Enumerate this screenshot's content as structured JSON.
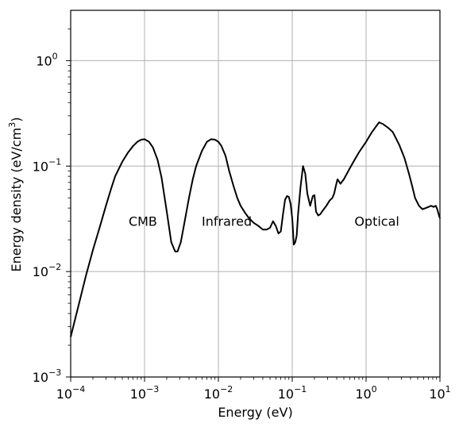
{
  "chart_data": {
    "type": "line",
    "xlabel": "Energy (eV)",
    "ylabel": "Energy density (eV/cm",
    "ylabel_sup": "3",
    "ylabel_end": ")",
    "x_scale": "log",
    "y_scale": "log",
    "xlim": [
      0.0001,
      10
    ],
    "ylim": [
      0.001,
      3
    ],
    "grid": true,
    "x_ticks": [
      {
        "base": "10",
        "exp": "−4",
        "value": 0.0001
      },
      {
        "base": "10",
        "exp": "−3",
        "value": 0.001
      },
      {
        "base": "10",
        "exp": "−2",
        "value": 0.01
      },
      {
        "base": "10",
        "exp": "−1",
        "value": 0.1
      },
      {
        "base": "10",
        "exp": "0",
        "value": 1
      },
      {
        "base": "10",
        "exp": "1",
        "value": 10
      }
    ],
    "y_ticks": [
      {
        "base": "10",
        "exp": "−3",
        "value": 0.001
      },
      {
        "base": "10",
        "exp": "−2",
        "value": 0.01
      },
      {
        "base": "10",
        "exp": "−1",
        "value": 0.1
      },
      {
        "base": "10",
        "exp": "0",
        "value": 1
      }
    ],
    "annotations": [
      {
        "text": "CMB",
        "x": 0.00095,
        "y": 0.03
      },
      {
        "text": "Infrared",
        "x": 0.013,
        "y": 0.03
      },
      {
        "text": "Optical",
        "x": 1.4,
        "y": 0.03
      }
    ],
    "series": [
      {
        "x": [
          0.0001,
          0.00013,
          0.00016,
          0.0002,
          0.00025,
          0.0003,
          0.00035,
          0.0004,
          0.0005,
          0.0006,
          0.0007,
          0.0008,
          0.0009,
          0.001,
          0.00115,
          0.0013,
          0.0015,
          0.0017,
          0.002,
          0.0023,
          0.0026,
          0.0028,
          0.0031,
          0.0035,
          0.004,
          0.0045,
          0.005,
          0.006,
          0.007,
          0.008,
          0.009,
          0.01,
          0.011,
          0.0125,
          0.014,
          0.016,
          0.018,
          0.02,
          0.023,
          0.026,
          0.03,
          0.035,
          0.04,
          0.045,
          0.05,
          0.055,
          0.06,
          0.065,
          0.07,
          0.075,
          0.08,
          0.085,
          0.09,
          0.095,
          0.1,
          0.105,
          0.11,
          0.115,
          0.12,
          0.13,
          0.14,
          0.15,
          0.16,
          0.175,
          0.19,
          0.2,
          0.21,
          0.225,
          0.24,
          0.26,
          0.29,
          0.32,
          0.35,
          0.37,
          0.39,
          0.41,
          0.45,
          0.5,
          0.6,
          0.7,
          0.8,
          1,
          1.2,
          1.5,
          1.7,
          2,
          2.3,
          2.8,
          3.3,
          3.8,
          4.2,
          4.6,
          5.2,
          5.8,
          6.4,
          7,
          7.6,
          8.2,
          8.8,
          9.2,
          9.6,
          10
        ],
        "y": [
          0.0024,
          0.005,
          0.009,
          0.016,
          0.027,
          0.042,
          0.06,
          0.08,
          0.11,
          0.135,
          0.155,
          0.17,
          0.178,
          0.18,
          0.17,
          0.15,
          0.115,
          0.078,
          0.037,
          0.019,
          0.0155,
          0.0155,
          0.019,
          0.03,
          0.05,
          0.075,
          0.1,
          0.14,
          0.17,
          0.18,
          0.178,
          0.17,
          0.155,
          0.125,
          0.09,
          0.065,
          0.05,
          0.042,
          0.036,
          0.032,
          0.029,
          0.027,
          0.025,
          0.025,
          0.026,
          0.03,
          0.027,
          0.023,
          0.024,
          0.035,
          0.048,
          0.052,
          0.051,
          0.044,
          0.032,
          0.018,
          0.019,
          0.022,
          0.035,
          0.065,
          0.1,
          0.085,
          0.055,
          0.042,
          0.052,
          0.053,
          0.037,
          0.034,
          0.035,
          0.038,
          0.042,
          0.047,
          0.05,
          0.055,
          0.065,
          0.075,
          0.068,
          0.075,
          0.095,
          0.115,
          0.135,
          0.17,
          0.21,
          0.26,
          0.25,
          0.23,
          0.21,
          0.16,
          0.12,
          0.085,
          0.065,
          0.05,
          0.042,
          0.039,
          0.04,
          0.041,
          0.042,
          0.041,
          0.042,
          0.039,
          0.035,
          0.032
        ]
      }
    ]
  }
}
